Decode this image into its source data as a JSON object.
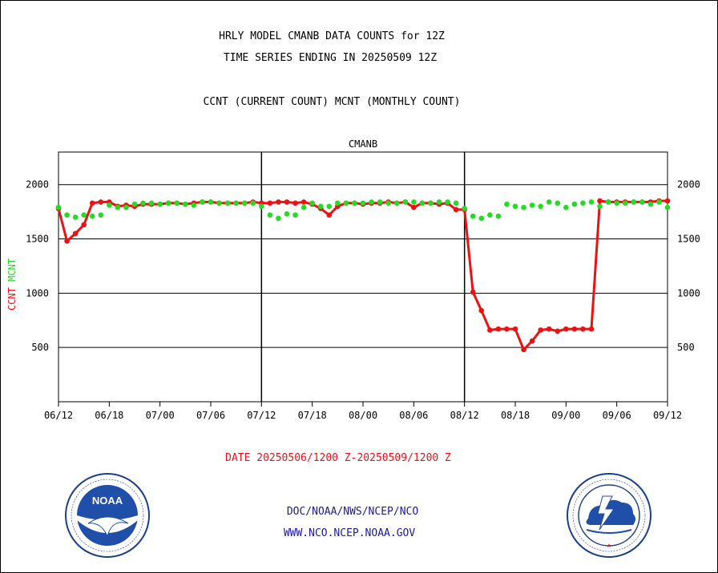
{
  "header": {
    "title_line1": "HRLY MODEL CMANB DATA COUNTS for 12Z",
    "title_line2": "TIME SERIES ENDING IN 20250509 12Z",
    "subtitle": "CCNT (CURRENT COUNT) MCNT (MONTHLY COUNT)"
  },
  "footer": {
    "date_range": "DATE 20250506/1200 Z-20250509/1200 Z",
    "org_line": "DOC/NOAA/NWS/NCEP/NCO",
    "url_line": "WWW.NCO.NCEP.NOAA.GOV"
  },
  "logos": {
    "noaa": {
      "label": "NOAA",
      "ring_text": "NATIONAL OCEANIC AND ATMOSPHERIC ADMINISTRATION · U.S. DEPARTMENT OF COMMERCE"
    },
    "nws": {
      "ring_text": "NATIONAL WEATHER SERVICE"
    }
  },
  "colors": {
    "ccnt": "#ee1111",
    "mcnt": "#22dd22",
    "title": "#1a1aa0",
    "date": "#ee1111",
    "grid": "#000000"
  },
  "chart_data": {
    "type": "line",
    "title": "CMANB",
    "ylabel_parts": [
      {
        "text": "CCNT",
        "color": "#ee1111"
      },
      {
        "text": "MCNT",
        "color": "#22dd22"
      }
    ],
    "x_ticks": [
      "06/12",
      "06/18",
      "07/00",
      "07/06",
      "07/12",
      "07/18",
      "08/00",
      "08/06",
      "08/12",
      "08/18",
      "09/00",
      "09/06",
      "09/12"
    ],
    "xlim": [
      0,
      72
    ],
    "ylim": [
      0,
      2300
    ],
    "y_ticks": [
      500,
      1000,
      1500,
      2000
    ],
    "day_separators": [
      24,
      48
    ],
    "grid": true,
    "series": [
      {
        "name": "CCNT",
        "color": "#ee1111",
        "values": [
          1780,
          1480,
          1550,
          1630,
          1830,
          1840,
          1840,
          1800,
          1810,
          1800,
          1820,
          1820,
          1820,
          1830,
          1830,
          1820,
          1830,
          1840,
          1840,
          1830,
          1830,
          1830,
          1830,
          1840,
          1830,
          1830,
          1840,
          1840,
          1830,
          1840,
          1820,
          1780,
          1720,
          1800,
          1830,
          1830,
          1820,
          1830,
          1830,
          1840,
          1830,
          1840,
          1790,
          1830,
          1830,
          1820,
          1830,
          1770,
          1770,
          1010,
          840,
          660,
          670,
          670,
          670,
          480,
          560,
          660,
          670,
          650,
          670,
          670,
          670,
          670,
          1850,
          1840,
          1840,
          1840,
          1840,
          1840,
          1840,
          1850,
          1850
        ]
      },
      {
        "name": "MCNT",
        "color": "#22dd22",
        "values": [
          1790,
          1720,
          1700,
          1720,
          1710,
          1720,
          1810,
          1790,
          1790,
          1820,
          1830,
          1830,
          1820,
          1830,
          1830,
          1820,
          1810,
          1840,
          1840,
          1830,
          1830,
          1830,
          1830,
          1830,
          1800,
          1720,
          1690,
          1730,
          1720,
          1790,
          1830,
          1800,
          1800,
          1830,
          1830,
          1830,
          1830,
          1840,
          1840,
          1830,
          1830,
          1840,
          1840,
          1830,
          1830,
          1840,
          1840,
          1830,
          1780,
          1710,
          1690,
          1720,
          1710,
          1820,
          1800,
          1790,
          1810,
          1800,
          1840,
          1830,
          1790,
          1820,
          1830,
          1840,
          1800,
          1840,
          1830,
          1830,
          1840,
          1840,
          1820,
          1840,
          1790
        ]
      }
    ]
  }
}
